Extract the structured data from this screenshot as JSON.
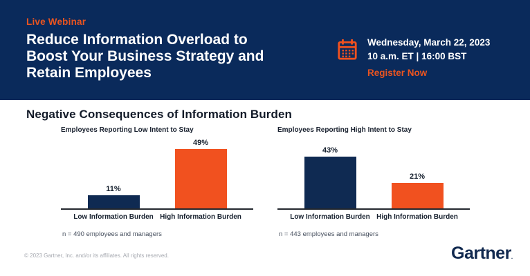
{
  "banner": {
    "eyebrow": "Live Webinar",
    "title_lines": [
      "Reduce Information Overload to",
      "Boost Your Business Strategy and",
      "Retain Employees"
    ],
    "event": {
      "date": "Wednesday, March 22, 2023",
      "time": "10 a.m. ET | 16:00 BST",
      "cta": "Register Now"
    }
  },
  "section": {
    "heading": "Negative Consequences of Information Burden"
  },
  "chart_data": [
    {
      "type": "bar",
      "title": "Employees Reporting Low Intent to Stay",
      "categories": [
        "Low Information Burden",
        "High Information Burden"
      ],
      "values": [
        11,
        49
      ],
      "value_labels": [
        "11%",
        "49%"
      ],
      "bar_colors": [
        "#0F2A52",
        "#F1511F"
      ],
      "note": "n = 490 employees and managers",
      "xlabel": "",
      "ylabel": "",
      "ylim": [
        0,
        55
      ],
      "grid": false,
      "legend": false
    },
    {
      "type": "bar",
      "title": "Employees Reporting High Intent to Stay",
      "categories": [
        "Low Information Burden",
        "High Information Burden"
      ],
      "values": [
        43,
        21
      ],
      "value_labels": [
        "43%",
        "21%"
      ],
      "bar_colors": [
        "#0F2A52",
        "#F1511F"
      ],
      "note": "n = 443 employees and managers",
      "xlabel": "",
      "ylabel": "",
      "ylim": [
        0,
        55
      ],
      "grid": false,
      "legend": false
    }
  ],
  "footer": {
    "copyright": "© 2023 Gartner, Inc. and/or its affiliates. All rights reserved.",
    "logo": "Gartner",
    "logo_mark": "."
  },
  "colors": {
    "banner_navy": "#0A2A5B",
    "bar_navy": "#0F2A52",
    "orange": "#F1511F"
  }
}
